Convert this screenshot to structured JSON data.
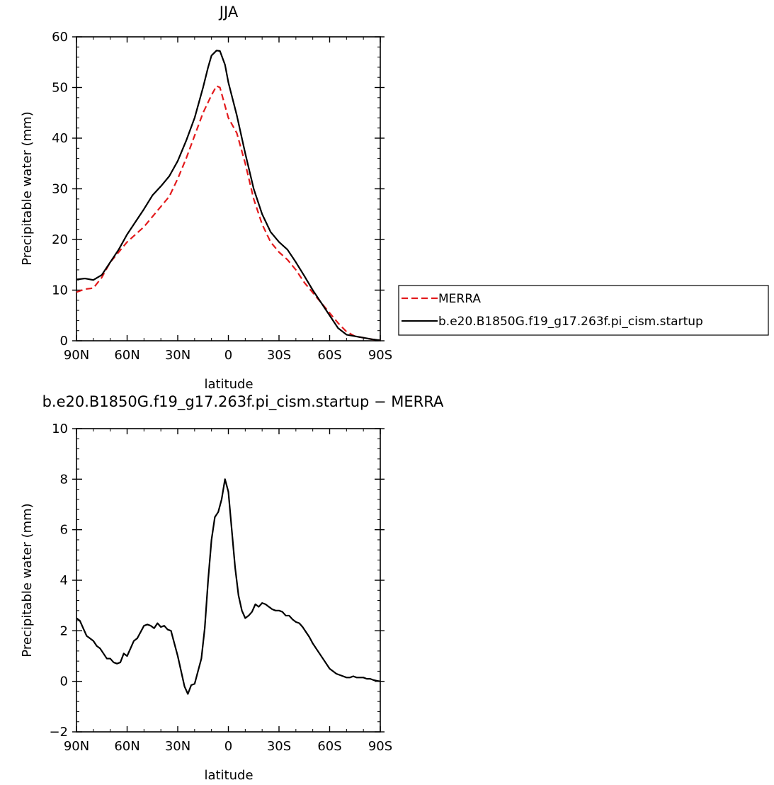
{
  "chart_data": [
    {
      "type": "line",
      "title": "JJA",
      "xlabel": "latitude",
      "ylabel": "Precipitable water (mm)",
      "xlim": [
        90,
        -90
      ],
      "ylim": [
        0,
        60
      ],
      "xticks": [
        90,
        60,
        30,
        0,
        -30,
        -60,
        -90
      ],
      "xtick_labels": [
        "90N",
        "60N",
        "30N",
        "0",
        "30S",
        "60S",
        "90S"
      ],
      "yticks": [
        0,
        10,
        20,
        30,
        40,
        50,
        60
      ],
      "ytick_labels": [
        "0",
        "10",
        "20",
        "30",
        "40",
        "50",
        "60"
      ],
      "grid": false,
      "legend_position": "right",
      "series": [
        {
          "name": "MERRA",
          "color": "#e31a1c",
          "dash": "dashed",
          "x": [
            90,
            85,
            80,
            75,
            70,
            65,
            60,
            55,
            50,
            45,
            40,
            35,
            30,
            25,
            20,
            15,
            10,
            7,
            5,
            0,
            -5,
            -10,
            -15,
            -20,
            -25,
            -30,
            -35,
            -40,
            -45,
            -50,
            -55,
            -60,
            -65,
            -70,
            -75,
            -80,
            -85,
            -90
          ],
          "y": [
            9.6,
            10.2,
            10.4,
            12.5,
            15.5,
            17.5,
            19.5,
            21,
            22.5,
            24.5,
            26.5,
            28.5,
            32,
            36,
            40.5,
            45,
            48.5,
            50.3,
            50,
            44,
            41,
            35,
            28,
            23,
            19.5,
            17.5,
            16,
            14,
            11.5,
            9.5,
            7.5,
            5.5,
            3.5,
            1.8,
            0.9,
            0.6,
            0.3,
            0.1
          ]
        },
        {
          "name": "b.e20.B1850G.f19_g17.263f.pi_cism.startup",
          "color": "#000000",
          "dash": "solid",
          "x": [
            90,
            85,
            80,
            75,
            70,
            65,
            60,
            55,
            50,
            45,
            40,
            35,
            30,
            25,
            20,
            15,
            12,
            10,
            7,
            5,
            2,
            0,
            -5,
            -10,
            -15,
            -20,
            -25,
            -30,
            -35,
            -40,
            -45,
            -50,
            -55,
            -60,
            -65,
            -70,
            -75,
            -80,
            -85,
            -90
          ],
          "y": [
            12.1,
            12.3,
            12,
            13,
            15.5,
            18,
            21,
            23.5,
            26,
            28.7,
            30.5,
            32.5,
            35.5,
            39.5,
            44,
            50,
            54,
            56.3,
            57.3,
            57.2,
            54.5,
            51,
            44.5,
            37,
            30,
            25,
            21.5,
            19.5,
            18,
            15.5,
            12.8,
            10,
            7.5,
            5,
            2.5,
            1.2,
            0.9,
            0.6,
            0.3,
            0.1
          ]
        }
      ]
    },
    {
      "type": "line",
      "title": "b.e20.B1850G.f19_g17.263f.pi_cism.startup − MERRA",
      "xlabel": "latitude",
      "ylabel": "Precipitable water (mm)",
      "xlim": [
        90,
        -90
      ],
      "ylim": [
        -2,
        10
      ],
      "xticks": [
        90,
        60,
        30,
        0,
        -30,
        -60,
        -90
      ],
      "xtick_labels": [
        "90N",
        "60N",
        "30N",
        "0",
        "30S",
        "60S",
        "90S"
      ],
      "yticks": [
        -2,
        0,
        2,
        4,
        6,
        8,
        10
      ],
      "ytick_labels": [
        "−2",
        "0",
        "2",
        "4",
        "6",
        "8",
        "10"
      ],
      "grid": false,
      "series": [
        {
          "color": "#000000",
          "dash": "solid",
          "x": [
            90,
            88,
            86,
            84,
            82,
            80,
            78,
            76,
            74,
            72,
            70,
            68,
            66,
            64,
            62,
            60,
            58,
            56,
            54,
            52,
            50,
            48,
            46,
            44,
            42,
            40,
            38,
            36,
            34,
            32,
            30,
            28,
            26,
            24,
            22,
            20,
            18,
            16,
            14,
            12,
            10,
            8,
            6,
            4,
            2,
            0,
            -2,
            -4,
            -6,
            -8,
            -10,
            -12,
            -14,
            -16,
            -18,
            -20,
            -22,
            -24,
            -26,
            -28,
            -30,
            -32,
            -34,
            -36,
            -38,
            -40,
            -42,
            -44,
            -46,
            -48,
            -50,
            -52,
            -54,
            -56,
            -58,
            -60,
            -62,
            -64,
            -66,
            -68,
            -70,
            -72,
            -74,
            -76,
            -78,
            -80,
            -82,
            -84,
            -86,
            -88,
            -90
          ],
          "y": [
            2.5,
            2.4,
            2.1,
            1.8,
            1.7,
            1.6,
            1.4,
            1.3,
            1.1,
            0.9,
            0.9,
            0.75,
            0.7,
            0.75,
            1.1,
            1.0,
            1.3,
            1.6,
            1.7,
            1.95,
            2.2,
            2.25,
            2.2,
            2.1,
            2.3,
            2.15,
            2.2,
            2.05,
            2.0,
            1.5,
            1.0,
            0.4,
            -0.2,
            -0.5,
            -0.15,
            -0.1,
            0.4,
            0.9,
            2.1,
            4.0,
            5.6,
            6.5,
            6.7,
            7.2,
            8.0,
            7.5,
            6.0,
            4.5,
            3.4,
            2.8,
            2.5,
            2.6,
            2.75,
            3.05,
            2.95,
            3.1,
            3.05,
            2.95,
            2.85,
            2.8,
            2.8,
            2.75,
            2.6,
            2.6,
            2.45,
            2.35,
            2.3,
            2.15,
            1.95,
            1.75,
            1.5,
            1.3,
            1.1,
            0.9,
            0.7,
            0.5,
            0.4,
            0.3,
            0.25,
            0.2,
            0.15,
            0.15,
            0.2,
            0.15,
            0.15,
            0.15,
            0.1,
            0.1,
            0.05,
            0.02,
            0.0
          ]
        }
      ]
    }
  ]
}
